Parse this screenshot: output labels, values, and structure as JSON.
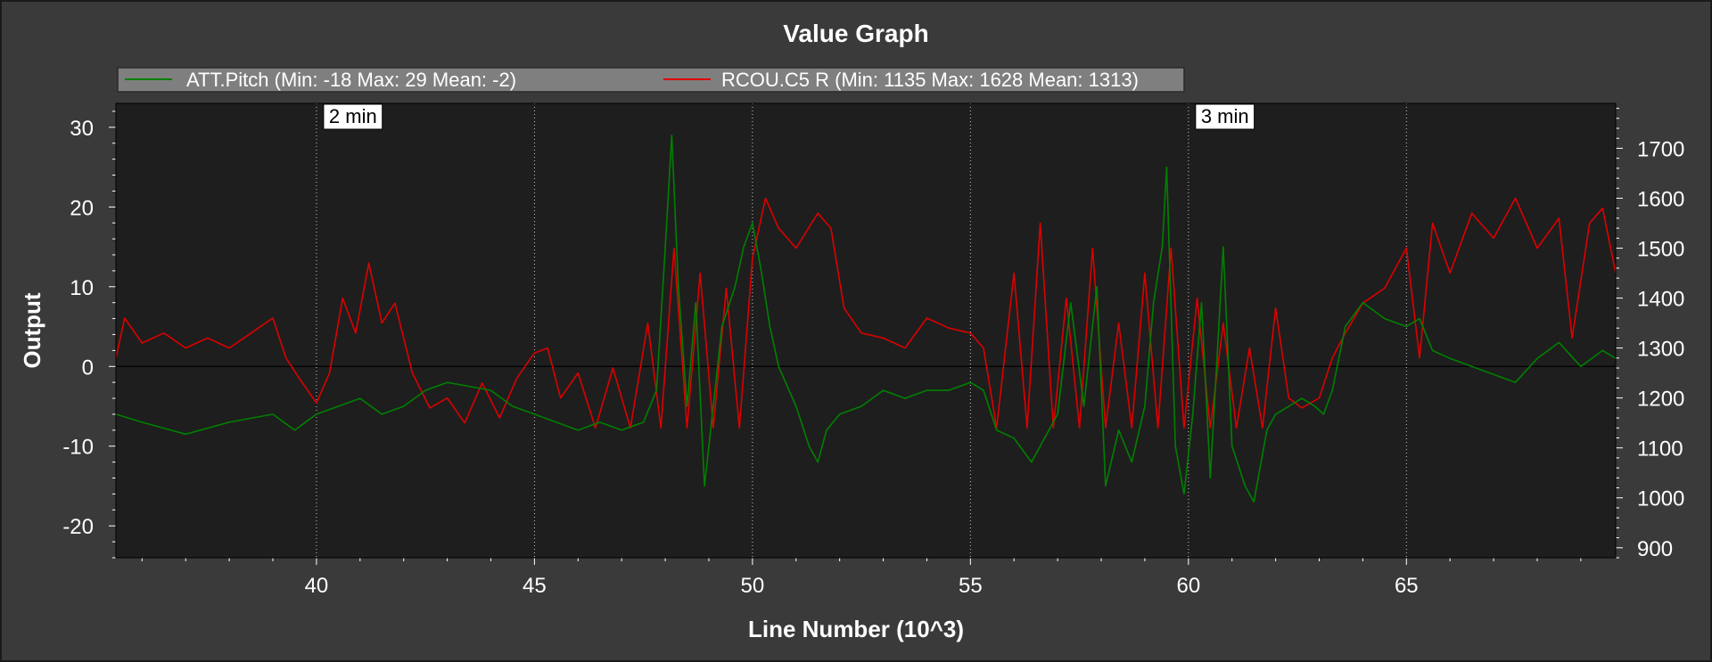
{
  "chart_data": {
    "type": "line",
    "title": "Value Graph",
    "xlabel": "Line Number (10^3)",
    "ylabel": "Output",
    "xlim": [
      35.4,
      69.8
    ],
    "ylim": [
      -24,
      33
    ],
    "y2lim": [
      880,
      1790
    ],
    "x_ticks": [
      40,
      45,
      50,
      55,
      60,
      65
    ],
    "y_ticks": [
      -20,
      -10,
      0,
      10,
      20,
      30
    ],
    "y2_ticks": [
      900,
      1000,
      1100,
      1200,
      1300,
      1400,
      1500,
      1600,
      1700
    ],
    "grid": "vertical dotted",
    "legend_position": "top",
    "time_markers": [
      {
        "x": 40,
        "label": "2 min"
      },
      {
        "x": 60,
        "label": "3 min"
      }
    ],
    "colors": {
      "background": "#3a3a3a",
      "plot_background": "#1e1e1e",
      "legend_background": "#7f7f7f",
      "series_pitch": "#008000",
      "series_rcou": "#dd0000"
    },
    "series": [
      {
        "name": "ATT.Pitch (Min: -18 Max: 29 Mean: -2)",
        "axis": "left",
        "color": "#008000",
        "points": [
          [
            35.4,
            -6
          ],
          [
            36,
            -7
          ],
          [
            37,
            -8.5
          ],
          [
            38,
            -7
          ],
          [
            39,
            -6
          ],
          [
            39.5,
            -8
          ],
          [
            40,
            -6
          ],
          [
            40.5,
            -5
          ],
          [
            41,
            -4
          ],
          [
            41.5,
            -6
          ],
          [
            42,
            -5
          ],
          [
            42.5,
            -3
          ],
          [
            43,
            -2
          ],
          [
            43.5,
            -2.5
          ],
          [
            44,
            -3
          ],
          [
            44.5,
            -5
          ],
          [
            45,
            -6
          ],
          [
            45.5,
            -7
          ],
          [
            46,
            -8
          ],
          [
            46.5,
            -7
          ],
          [
            47,
            -8
          ],
          [
            47.5,
            -7
          ],
          [
            47.8,
            -3
          ],
          [
            48,
            15
          ],
          [
            48.15,
            29
          ],
          [
            48.3,
            10
          ],
          [
            48.5,
            -5
          ],
          [
            48.7,
            8
          ],
          [
            48.9,
            -15
          ],
          [
            49.1,
            -5
          ],
          [
            49.3,
            5
          ],
          [
            49.6,
            10
          ],
          [
            49.8,
            15
          ],
          [
            50,
            18
          ],
          [
            50.2,
            12
          ],
          [
            50.4,
            5
          ],
          [
            50.6,
            0
          ],
          [
            51,
            -5
          ],
          [
            51.3,
            -10
          ],
          [
            51.5,
            -12
          ],
          [
            51.7,
            -8
          ],
          [
            52,
            -6
          ],
          [
            52.5,
            -5
          ],
          [
            53,
            -3
          ],
          [
            53.5,
            -4
          ],
          [
            54,
            -3
          ],
          [
            54.5,
            -3
          ],
          [
            55,
            -2
          ],
          [
            55.3,
            -3
          ],
          [
            55.6,
            -8
          ],
          [
            56,
            -9
          ],
          [
            56.4,
            -12
          ],
          [
            56.8,
            -8
          ],
          [
            57,
            -6
          ],
          [
            57.3,
            8
          ],
          [
            57.6,
            -5
          ],
          [
            57.9,
            10
          ],
          [
            58.1,
            -15
          ],
          [
            58.4,
            -8
          ],
          [
            58.7,
            -12
          ],
          [
            59,
            -5
          ],
          [
            59.2,
            8
          ],
          [
            59.4,
            15
          ],
          [
            59.5,
            25
          ],
          [
            59.7,
            -10
          ],
          [
            59.9,
            -16
          ],
          [
            60.1,
            -6
          ],
          [
            60.3,
            8
          ],
          [
            60.5,
            -14
          ],
          [
            60.8,
            15
          ],
          [
            61,
            -10
          ],
          [
            61.3,
            -15
          ],
          [
            61.5,
            -17
          ],
          [
            61.8,
            -8
          ],
          [
            62,
            -6
          ],
          [
            62.3,
            -5
          ],
          [
            62.6,
            -4
          ],
          [
            62.9,
            -5
          ],
          [
            63.1,
            -6
          ],
          [
            63.3,
            -3
          ],
          [
            63.6,
            5
          ],
          [
            64,
            8
          ],
          [
            64.5,
            6
          ],
          [
            65,
            5
          ],
          [
            65.3,
            6
          ],
          [
            65.6,
            2
          ],
          [
            66,
            1
          ],
          [
            66.5,
            0
          ],
          [
            67,
            -1
          ],
          [
            67.5,
            -2
          ],
          [
            68,
            1
          ],
          [
            68.5,
            3
          ],
          [
            69,
            0
          ],
          [
            69.5,
            2
          ],
          [
            69.8,
            1
          ]
        ]
      },
      {
        "name": "RCOU.C5 R (Min: 1135 Max: 1628 Mean: 1313)",
        "axis": "right",
        "color": "#dd0000",
        "points": [
          [
            35.4,
            1280
          ],
          [
            35.6,
            1360
          ],
          [
            36,
            1310
          ],
          [
            36.5,
            1330
          ],
          [
            37,
            1300
          ],
          [
            37.5,
            1320
          ],
          [
            38,
            1300
          ],
          [
            38.5,
            1330
          ],
          [
            39,
            1360
          ],
          [
            39.3,
            1280
          ],
          [
            39.6,
            1240
          ],
          [
            40,
            1190
          ],
          [
            40.3,
            1250
          ],
          [
            40.6,
            1400
          ],
          [
            40.9,
            1330
          ],
          [
            41.2,
            1470
          ],
          [
            41.5,
            1350
          ],
          [
            41.8,
            1390
          ],
          [
            42.2,
            1250
          ],
          [
            42.6,
            1180
          ],
          [
            43,
            1200
          ],
          [
            43.4,
            1150
          ],
          [
            43.8,
            1230
          ],
          [
            44.2,
            1160
          ],
          [
            44.6,
            1240
          ],
          [
            45,
            1290
          ],
          [
            45.3,
            1300
          ],
          [
            45.6,
            1200
          ],
          [
            46,
            1250
          ],
          [
            46.4,
            1140
          ],
          [
            46.8,
            1260
          ],
          [
            47.2,
            1140
          ],
          [
            47.6,
            1350
          ],
          [
            47.9,
            1140
          ],
          [
            48.2,
            1500
          ],
          [
            48.5,
            1140
          ],
          [
            48.8,
            1450
          ],
          [
            49.1,
            1140
          ],
          [
            49.4,
            1420
          ],
          [
            49.7,
            1140
          ],
          [
            50,
            1480
          ],
          [
            50.3,
            1600
          ],
          [
            50.6,
            1540
          ],
          [
            51,
            1500
          ],
          [
            51.5,
            1570
          ],
          [
            51.8,
            1540
          ],
          [
            52.1,
            1380
          ],
          [
            52.5,
            1330
          ],
          [
            53,
            1320
          ],
          [
            53.5,
            1300
          ],
          [
            54,
            1360
          ],
          [
            54.5,
            1340
          ],
          [
            55,
            1330
          ],
          [
            55.3,
            1300
          ],
          [
            55.6,
            1140
          ],
          [
            56,
            1450
          ],
          [
            56.3,
            1140
          ],
          [
            56.6,
            1550
          ],
          [
            56.9,
            1140
          ],
          [
            57.2,
            1400
          ],
          [
            57.5,
            1140
          ],
          [
            57.8,
            1500
          ],
          [
            58.1,
            1140
          ],
          [
            58.4,
            1350
          ],
          [
            58.7,
            1140
          ],
          [
            59,
            1450
          ],
          [
            59.3,
            1140
          ],
          [
            59.6,
            1500
          ],
          [
            59.9,
            1140
          ],
          [
            60.2,
            1400
          ],
          [
            60.5,
            1140
          ],
          [
            60.8,
            1350
          ],
          [
            61.1,
            1140
          ],
          [
            61.4,
            1300
          ],
          [
            61.7,
            1140
          ],
          [
            62,
            1380
          ],
          [
            62.3,
            1200
          ],
          [
            62.6,
            1180
          ],
          [
            63,
            1200
          ],
          [
            63.3,
            1280
          ],
          [
            63.6,
            1330
          ],
          [
            64,
            1390
          ],
          [
            64.5,
            1420
          ],
          [
            65,
            1500
          ],
          [
            65.3,
            1280
          ],
          [
            65.6,
            1550
          ],
          [
            66,
            1450
          ],
          [
            66.5,
            1570
          ],
          [
            67,
            1520
          ],
          [
            67.5,
            1600
          ],
          [
            68,
            1500
          ],
          [
            68.5,
            1560
          ],
          [
            68.8,
            1320
          ],
          [
            69.2,
            1550
          ],
          [
            69.5,
            1580
          ],
          [
            69.8,
            1450
          ]
        ]
      }
    ]
  }
}
